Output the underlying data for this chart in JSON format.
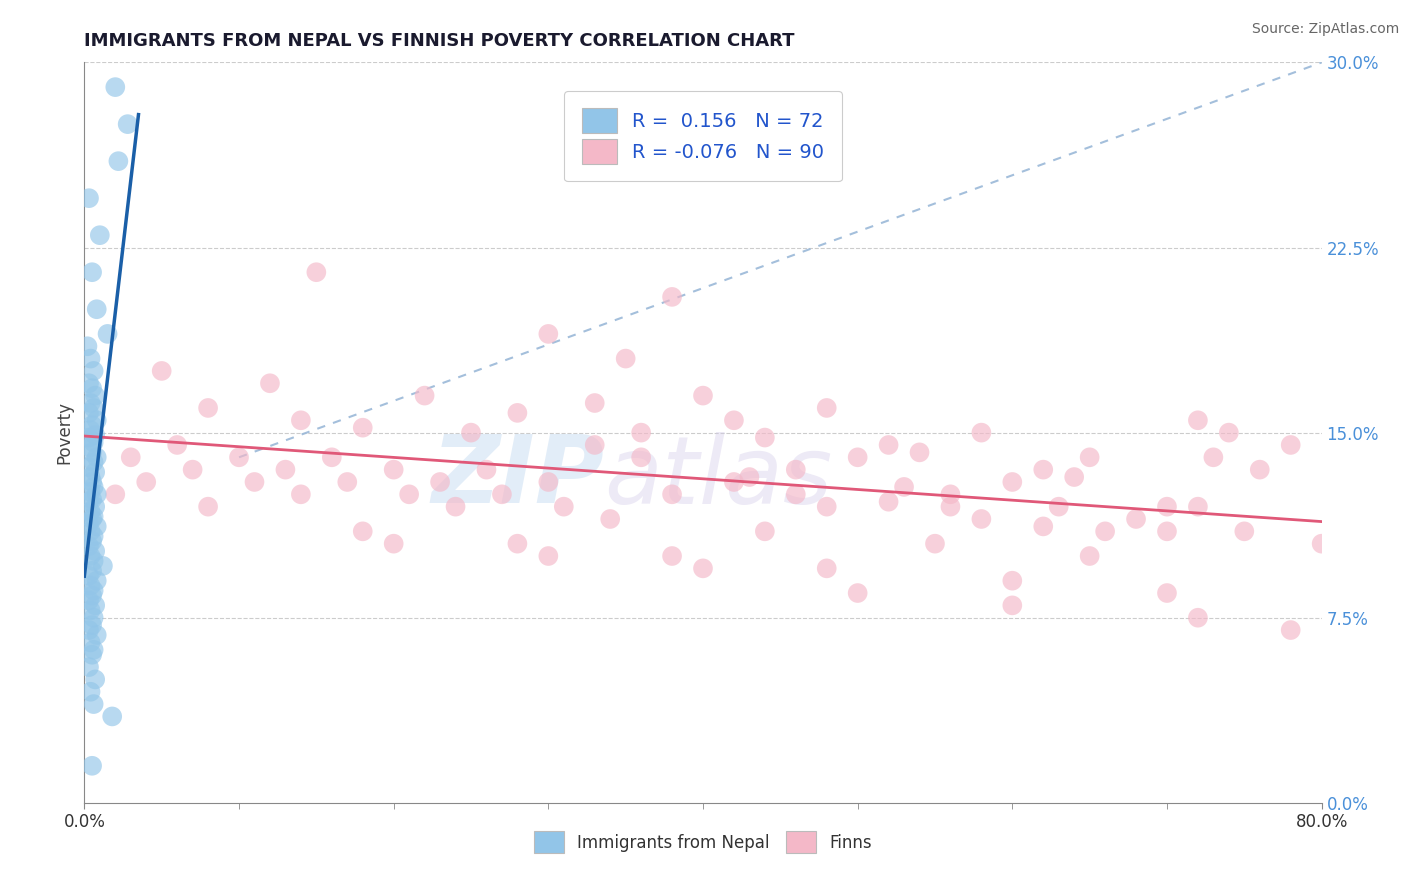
{
  "title": "IMMIGRANTS FROM NEPAL VS FINNISH POVERTY CORRELATION CHART",
  "source": "Source: ZipAtlas.com",
  "ylabel": "Poverty",
  "xlim": [
    0.0,
    80.0
  ],
  "ylim": [
    0.0,
    30.0
  ],
  "yticks_right": [
    0.0,
    7.5,
    15.0,
    22.5,
    30.0
  ],
  "blue_R": 0.156,
  "blue_N": 72,
  "pink_R": -0.076,
  "pink_N": 90,
  "blue_color": "#92c5e8",
  "pink_color": "#f4b8c8",
  "blue_line_color": "#1a5fa8",
  "pink_line_color": "#e05878",
  "diag_color": "#9ab8d8",
  "legend_label_blue": "Immigrants from Nepal",
  "legend_label_pink": "Finns",
  "watermark_zip": "ZIP",
  "watermark_atlas": "atlas",
  "title_fontsize": 13,
  "background_color": "#ffffff",
  "blue_scatter_x": [
    2.0,
    2.8,
    2.2,
    0.3,
    1.0,
    0.5,
    0.8,
    1.5,
    0.2,
    0.4,
    0.6,
    0.3,
    0.5,
    0.7,
    0.4,
    0.6,
    0.3,
    0.8,
    0.5,
    0.4,
    0.7,
    0.3,
    0.6,
    0.4,
    0.5,
    0.8,
    0.6,
    0.3,
    0.7,
    0.4,
    0.5,
    0.6,
    0.4,
    0.8,
    0.5,
    0.3,
    0.7,
    0.4,
    0.6,
    0.5,
    0.3,
    0.8,
    0.4,
    0.6,
    0.5,
    0.3,
    0.7,
    0.4,
    0.6,
    1.2,
    0.5,
    0.3,
    0.8,
    0.4,
    0.6,
    0.5,
    0.3,
    0.7,
    0.4,
    0.6,
    0.5,
    0.3,
    0.8,
    0.4,
    0.6,
    0.5,
    0.3,
    0.7,
    0.4,
    0.6,
    1.8,
    0.5
  ],
  "blue_scatter_y": [
    29.0,
    27.5,
    26.0,
    24.5,
    23.0,
    21.5,
    20.0,
    19.0,
    18.5,
    18.0,
    17.5,
    17.0,
    16.8,
    16.5,
    16.2,
    16.0,
    15.8,
    15.5,
    15.3,
    15.1,
    14.9,
    14.8,
    14.6,
    14.4,
    14.2,
    14.0,
    13.8,
    13.6,
    13.4,
    13.2,
    13.0,
    12.8,
    12.6,
    12.5,
    12.3,
    12.2,
    12.0,
    11.8,
    11.6,
    11.5,
    11.3,
    11.2,
    11.0,
    10.8,
    10.6,
    10.4,
    10.2,
    10.0,
    9.8,
    9.6,
    9.4,
    9.2,
    9.0,
    8.8,
    8.6,
    8.4,
    8.2,
    8.0,
    7.8,
    7.5,
    7.2,
    7.0,
    6.8,
    6.5,
    6.2,
    6.0,
    5.5,
    5.0,
    4.5,
    4.0,
    3.5,
    1.5
  ],
  "pink_scatter_x": [
    15.0,
    30.0,
    5.0,
    38.0,
    48.0,
    58.0,
    65.0,
    12.0,
    22.0,
    35.0,
    42.0,
    52.0,
    62.0,
    72.0,
    8.0,
    18.0,
    28.0,
    40.0,
    50.0,
    60.0,
    70.0,
    14.0,
    25.0,
    33.0,
    44.0,
    54.0,
    64.0,
    74.0,
    6.0,
    16.0,
    26.0,
    36.0,
    46.0,
    56.0,
    68.0,
    78.0,
    10.0,
    20.0,
    30.0,
    38.0,
    48.0,
    58.0,
    70.0,
    3.0,
    13.0,
    23.0,
    33.0,
    43.0,
    53.0,
    63.0,
    73.0,
    7.0,
    17.0,
    27.0,
    36.0,
    46.0,
    56.0,
    66.0,
    76.0,
    11.0,
    21.0,
    31.0,
    42.0,
    52.0,
    62.0,
    72.0,
    4.0,
    14.0,
    24.0,
    34.0,
    44.0,
    55.0,
    65.0,
    75.0,
    2.0,
    18.0,
    28.0,
    38.0,
    48.0,
    60.0,
    70.0,
    80.0,
    8.0,
    20.0,
    30.0,
    40.0,
    50.0,
    60.0,
    72.0,
    78.0
  ],
  "pink_scatter_y": [
    21.5,
    19.0,
    17.5,
    20.5,
    16.0,
    15.0,
    14.0,
    17.0,
    16.5,
    18.0,
    15.5,
    14.5,
    13.5,
    15.5,
    16.0,
    15.2,
    15.8,
    16.5,
    14.0,
    13.0,
    12.0,
    15.5,
    15.0,
    16.2,
    14.8,
    14.2,
    13.2,
    15.0,
    14.5,
    14.0,
    13.5,
    15.0,
    13.5,
    12.5,
    11.5,
    14.5,
    14.0,
    13.5,
    13.0,
    12.5,
    12.0,
    11.5,
    11.0,
    14.0,
    13.5,
    13.0,
    14.5,
    13.2,
    12.8,
    12.0,
    14.0,
    13.5,
    13.0,
    12.5,
    14.0,
    12.5,
    12.0,
    11.0,
    13.5,
    13.0,
    12.5,
    12.0,
    13.0,
    12.2,
    11.2,
    12.0,
    13.0,
    12.5,
    12.0,
    11.5,
    11.0,
    10.5,
    10.0,
    11.0,
    12.5,
    11.0,
    10.5,
    10.0,
    9.5,
    9.0,
    8.5,
    10.5,
    12.0,
    10.5,
    10.0,
    9.5,
    8.5,
    8.0,
    7.5,
    7.0
  ]
}
